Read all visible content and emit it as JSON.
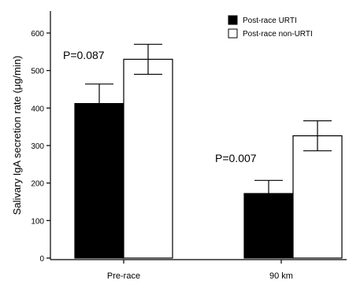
{
  "chart_data": {
    "type": "bar",
    "title": "",
    "xlabel": "",
    "ylabel": "Salivary IgA secretion rate (μg/min)",
    "ylim": [
      0,
      600
    ],
    "yticks": [
      "0",
      "100",
      "200",
      "300",
      "400",
      "500",
      "600"
    ],
    "categories": [
      "Pre-race",
      "90 km"
    ],
    "series": [
      {
        "name": "Post-race URTI",
        "values": [
          412,
          172
        ],
        "errors": [
          52,
          35
        ],
        "color": "#000000"
      },
      {
        "name": "Post-race non-URTI",
        "values": [
          530,
          326
        ],
        "errors": [
          40,
          40
        ],
        "color": "#ffffff"
      }
    ],
    "annotations": [
      "P=0.087",
      "P=0.007"
    ],
    "legend_position": "top-right",
    "grid": false
  }
}
